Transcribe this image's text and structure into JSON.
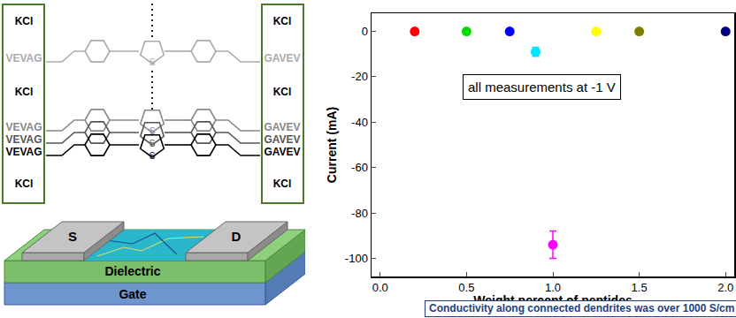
{
  "chart_data": {
    "type": "scatter",
    "x_label": "Weight percent of peptides",
    "y_label": "Current (mA)",
    "annotation": "all measurements at -1 V",
    "x": [
      0.2,
      0.5,
      0.75,
      0.9,
      1.0,
      1.25,
      1.5,
      2.0
    ],
    "values": [
      0,
      0,
      0,
      -9,
      -94,
      0,
      0,
      0
    ],
    "errors": [
      0,
      0,
      0,
      2,
      6,
      0,
      0,
      0
    ],
    "colors": [
      "#ff0000",
      "#00dd00",
      "#0000ff",
      "#00e5ff",
      "#ff00ff",
      "#ffff00",
      "#808000",
      "#000080"
    ],
    "marker": "circle",
    "xlim": [
      -0.05,
      2.05
    ],
    "xticks": [
      {
        "value": 0,
        "label": "0.0"
      },
      {
        "value": 0.5,
        "label": "0.5"
      },
      {
        "value": 1,
        "label": "1.0"
      },
      {
        "value": 1.5,
        "label": "1.5"
      },
      {
        "value": 2,
        "label": "2.0"
      }
    ],
    "ylim": [
      -108,
      8
    ],
    "yticks": [
      -100,
      -80,
      -60,
      -40,
      -20,
      0
    ],
    "grid": false
  },
  "diagram": {
    "left_labels": [
      "KCl",
      "VEVAG",
      "KCl",
      "VEVAG",
      "VEVAG",
      "VEVAG",
      "KCl"
    ],
    "right_labels": [
      "KCl",
      "GAVEV",
      "KCl",
      "GAVEV",
      "GAVEV",
      "GAVEV",
      "KCl"
    ],
    "sulfur_labels": [
      "S",
      "S",
      "S",
      "S"
    ],
    "source": "S",
    "drain": "D",
    "dielectric": "Dielectric",
    "gate": "Gate",
    "footer": "Conductivity along connected dendrites was over 1000 S/cm"
  }
}
